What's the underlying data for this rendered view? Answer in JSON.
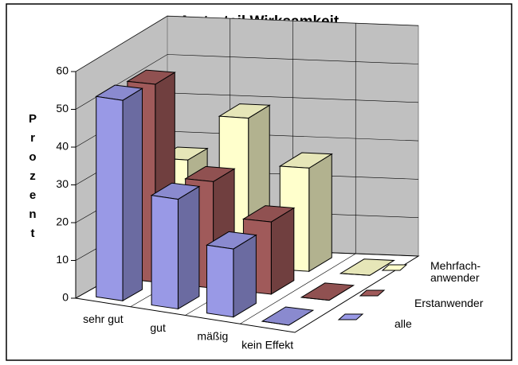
{
  "chart_data": {
    "type": "bar3d",
    "title": "Arzturteil Wirksamkeit",
    "y_label": "Prozent",
    "categories": [
      "sehr gut",
      "gut",
      "mäßig",
      "kein Effekt"
    ],
    "series": [
      {
        "name": "alle",
        "color": "#9999e6",
        "values": [
          53,
          29,
          18,
          0
        ]
      },
      {
        "name": "Erstanwender",
        "color": "#a05a5a",
        "values": [
          52,
          28,
          19,
          0
        ]
      },
      {
        "name": "Mehrfach-\nanwender",
        "color": "#ffffcc",
        "values": [
          27,
          39,
          27,
          0
        ]
      }
    ],
    "ylim": [
      0,
      60
    ],
    "yticks": [
      0,
      10,
      20,
      30,
      40,
      50,
      60
    ],
    "grid": true
  }
}
